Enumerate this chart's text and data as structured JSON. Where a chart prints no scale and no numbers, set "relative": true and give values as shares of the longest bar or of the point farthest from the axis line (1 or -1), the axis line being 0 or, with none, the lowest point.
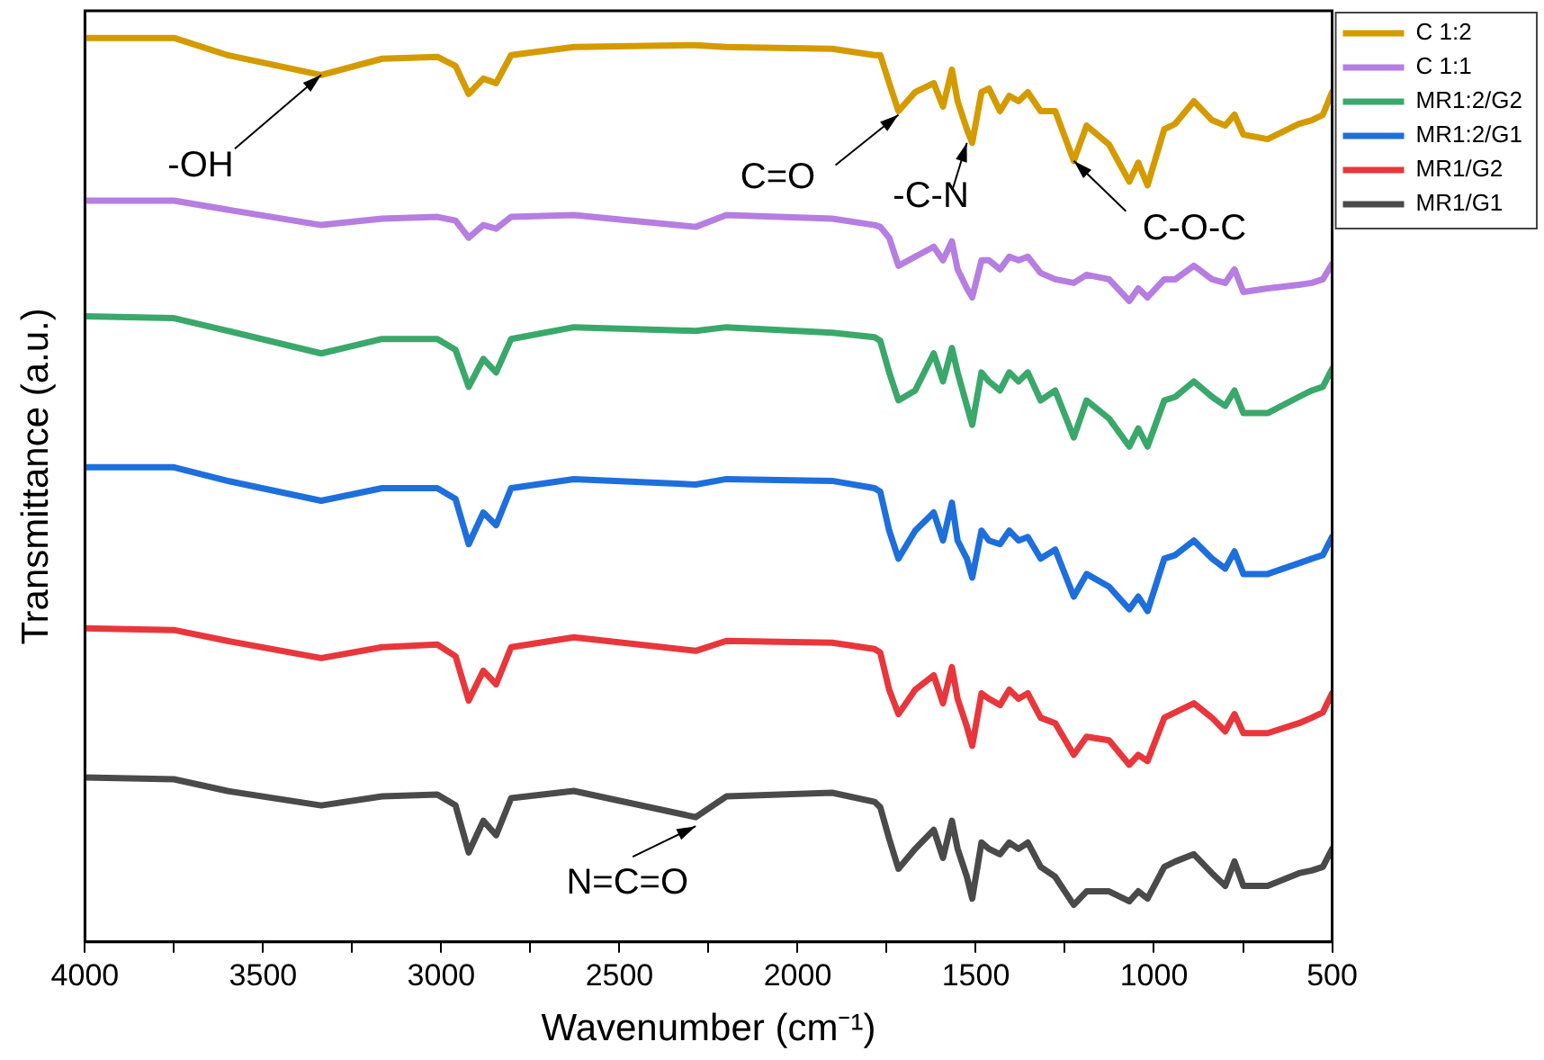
{
  "chart_data": {
    "type": "line",
    "relative": true,
    "xlabel": "Wavenumber (cm⁻¹)",
    "ylabel": "Transmittance (a.u.)",
    "xlim": [
      4000,
      500
    ],
    "xticks": [
      4000,
      {
        "value": 3750,
        "label": null
      },
      3500,
      {
        "value": 3250,
        "label": null
      },
      3000,
      {
        "value": 2750,
        "label": null
      },
      2500,
      {
        "value": 2250,
        "label": null
      },
      2000,
      {
        "value": 1750,
        "label": null
      },
      1500,
      {
        "value": 1250,
        "label": null
      },
      1000,
      {
        "value": 750,
        "label": null
      },
      500
    ],
    "grid": false,
    "legend": "top right",
    "marker": "none",
    "x": [
      4000,
      3750,
      3600,
      3337,
      3166,
      3011,
      2960,
      2923,
      2882,
      2846,
      2804,
      2628,
      2286,
      2200,
      1903,
      1784,
      1768,
      1743,
      1717,
      1670,
      1618,
      1592,
      1567,
      1551,
      1525,
      1510,
      1484,
      1463,
      1432,
      1406,
      1380,
      1354,
      1318,
      1277,
      1225,
      1189,
      1126,
      1069,
      1044,
      1018,
      971,
      940,
      888,
      837,
      800,
      774,
      749,
      681,
      593,
      557,
      526,
      500
    ],
    "series": [
      {
        "name": "C 1:2",
        "color": "#d49b00",
        "values": [
          1.0,
          1.0,
          0.981,
          0.959,
          0.977,
          0.979,
          0.969,
          0.938,
          0.955,
          0.95,
          0.981,
          0.99,
          0.992,
          0.99,
          0.988,
          0.981,
          0.981,
          0.95,
          0.919,
          0.94,
          0.95,
          0.924,
          0.965,
          0.93,
          0.899,
          0.884,
          0.94,
          0.944,
          0.919,
          0.936,
          0.93,
          0.94,
          0.919,
          0.919,
          0.864,
          0.903,
          0.882,
          0.841,
          0.862,
          0.837,
          0.899,
          0.905,
          0.93,
          0.909,
          0.903,
          0.915,
          0.893,
          0.888,
          0.905,
          0.909,
          0.915,
          0.94
        ]
      },
      {
        "name": "C 1:1",
        "color": "#b57ee0",
        "values": [
          0.82,
          0.82,
          0.81,
          0.793,
          0.8,
          0.802,
          0.798,
          0.779,
          0.793,
          0.789,
          0.802,
          0.804,
          0.791,
          0.804,
          0.8,
          0.793,
          0.791,
          0.779,
          0.748,
          0.758,
          0.769,
          0.754,
          0.775,
          0.744,
          0.723,
          0.713,
          0.754,
          0.754,
          0.744,
          0.758,
          0.754,
          0.758,
          0.74,
          0.733,
          0.729,
          0.738,
          0.733,
          0.709,
          0.723,
          0.713,
          0.733,
          0.733,
          0.748,
          0.733,
          0.729,
          0.744,
          0.719,
          0.723,
          0.727,
          0.729,
          0.733,
          0.75
        ]
      },
      {
        "name": "MR1:2/G2",
        "color": "#3aa86b",
        "values": [
          0.692,
          0.69,
          0.676,
          0.651,
          0.667,
          0.667,
          0.655,
          0.614,
          0.645,
          0.63,
          0.667,
          0.68,
          0.676,
          0.68,
          0.674,
          0.669,
          0.665,
          0.63,
          0.599,
          0.61,
          0.651,
          0.62,
          0.657,
          0.63,
          0.593,
          0.572,
          0.63,
          0.62,
          0.61,
          0.63,
          0.62,
          0.63,
          0.599,
          0.61,
          0.558,
          0.599,
          0.579,
          0.548,
          0.568,
          0.548,
          0.599,
          0.603,
          0.62,
          0.603,
          0.593,
          0.61,
          0.585,
          0.585,
          0.603,
          0.61,
          0.614,
          0.634
        ]
      },
      {
        "name": "MR1:2/G1",
        "color": "#1e6fdc",
        "values": [
          0.525,
          0.525,
          0.51,
          0.488,
          0.502,
          0.502,
          0.49,
          0.44,
          0.475,
          0.461,
          0.502,
          0.512,
          0.506,
          0.512,
          0.51,
          0.502,
          0.498,
          0.455,
          0.424,
          0.455,
          0.475,
          0.444,
          0.486,
          0.444,
          0.424,
          0.403,
          0.455,
          0.444,
          0.44,
          0.455,
          0.444,
          0.448,
          0.424,
          0.434,
          0.382,
          0.407,
          0.393,
          0.368,
          0.382,
          0.366,
          0.424,
          0.428,
          0.444,
          0.424,
          0.413,
          0.432,
          0.407,
          0.407,
          0.419,
          0.424,
          0.428,
          0.448
        ]
      },
      {
        "name": "MR1/G2",
        "color": "#e8373c",
        "values": [
          0.347,
          0.345,
          0.333,
          0.314,
          0.326,
          0.329,
          0.316,
          0.267,
          0.3,
          0.285,
          0.326,
          0.337,
          0.322,
          0.333,
          0.331,
          0.324,
          0.32,
          0.279,
          0.252,
          0.279,
          0.295,
          0.264,
          0.304,
          0.269,
          0.238,
          0.217,
          0.275,
          0.269,
          0.262,
          0.279,
          0.269,
          0.275,
          0.248,
          0.242,
          0.207,
          0.227,
          0.223,
          0.196,
          0.207,
          0.2,
          0.248,
          0.254,
          0.264,
          0.248,
          0.233,
          0.252,
          0.231,
          0.231,
          0.242,
          0.248,
          0.254,
          0.275
        ]
      },
      {
        "name": "MR1/G1",
        "color": "#4a4a4a",
        "values": [
          0.182,
          0.18,
          0.167,
          0.151,
          0.161,
          0.163,
          0.151,
          0.099,
          0.134,
          0.118,
          0.159,
          0.167,
          0.138,
          0.161,
          0.165,
          0.155,
          0.149,
          0.114,
          0.081,
          0.103,
          0.124,
          0.093,
          0.134,
          0.103,
          0.072,
          0.048,
          0.11,
          0.103,
          0.097,
          0.11,
          0.103,
          0.11,
          0.083,
          0.072,
          0.041,
          0.056,
          0.056,
          0.045,
          0.056,
          0.048,
          0.083,
          0.089,
          0.097,
          0.076,
          0.062,
          0.089,
          0.062,
          0.062,
          0.076,
          0.079,
          0.083,
          0.103
        ]
      }
    ],
    "annotations": [
      {
        "text": "-OH",
        "x": 3337,
        "y": 0.959
      },
      {
        "text": "C=O",
        "x": 1717,
        "y": 0.915
      },
      {
        "text": "-C-N",
        "x": 1525,
        "y": 0.884
      },
      {
        "text": "C-O-C",
        "x": 1225,
        "y": 0.864
      },
      {
        "text": "N=C=O",
        "x": 2286,
        "y": 0.128
      }
    ]
  }
}
